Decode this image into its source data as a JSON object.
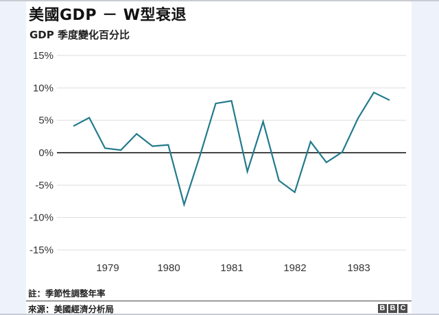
{
  "header": {
    "title": "美國GDP － W型衰退",
    "subtitle": "GDP  季度變化百分比"
  },
  "footer": {
    "note": "註：季節性調整年率",
    "source": "來源：美國經濟分析局",
    "logo_letters": [
      "B",
      "B",
      "C"
    ]
  },
  "colors": {
    "line": "#217a8c",
    "zero_line": "#444444",
    "grid": "#dddddd",
    "background_margin": "#eef2fa",
    "panel": "#ffffff"
  },
  "chart_data": {
    "type": "line",
    "title": "美國GDP － W型衰退",
    "subtitle": "GDP 季度變化百分比",
    "xlabel": "",
    "ylabel": "",
    "ylim": [
      -15,
      15
    ],
    "yticks": [
      15,
      10,
      5,
      0,
      -5,
      -10,
      -15
    ],
    "ytick_labels": [
      "15%",
      "10%",
      "5%",
      "0%",
      "-5%",
      "-10%",
      "-15%"
    ],
    "xtick_labels": [
      "1979",
      "1980",
      "1981",
      "1982",
      "1983"
    ],
    "grid": true,
    "legend": null,
    "x": [
      "1978Q3",
      "1978Q4",
      "1979Q1",
      "1979Q2",
      "1979Q3",
      "1979Q4",
      "1980Q1",
      "1980Q2",
      "1980Q3",
      "1980Q4",
      "1981Q1",
      "1981Q2",
      "1981Q3",
      "1981Q4",
      "1982Q1",
      "1982Q2",
      "1982Q3",
      "1982Q4",
      "1983Q1",
      "1983Q2",
      "1983Q3"
    ],
    "series": [
      {
        "name": "GDP 季度變化百分比",
        "values": [
          4.1,
          5.4,
          0.7,
          0.4,
          2.9,
          1.0,
          1.2,
          -8.0,
          -0.5,
          7.6,
          8.0,
          -2.9,
          4.8,
          -4.3,
          -6.1,
          1.7,
          -1.5,
          0.1,
          5.3,
          9.3,
          8.1
        ]
      }
    ],
    "annotations": [
      "註：季節性調整年率",
      "來源：美國經濟分析局"
    ]
  }
}
